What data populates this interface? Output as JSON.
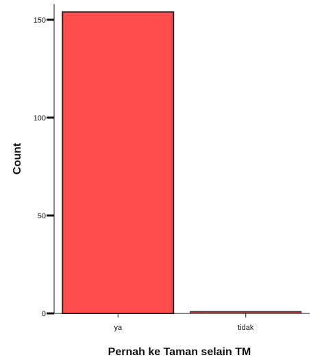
{
  "chart_data": {
    "type": "bar",
    "categories": [
      "ya",
      "tidak"
    ],
    "values": [
      154,
      1
    ],
    "xlabel": "Pernah ke Taman selain TM",
    "ylabel": "Count",
    "ylim": [
      0,
      158
    ],
    "yticks": [
      0,
      50,
      100,
      150
    ],
    "grid": false,
    "legend": "none"
  },
  "colors": {
    "bar_fill": "#ff4d4d",
    "bar_stroke": "#222222",
    "small_bar_fill": "#a13c3c",
    "axis": "#111111"
  }
}
